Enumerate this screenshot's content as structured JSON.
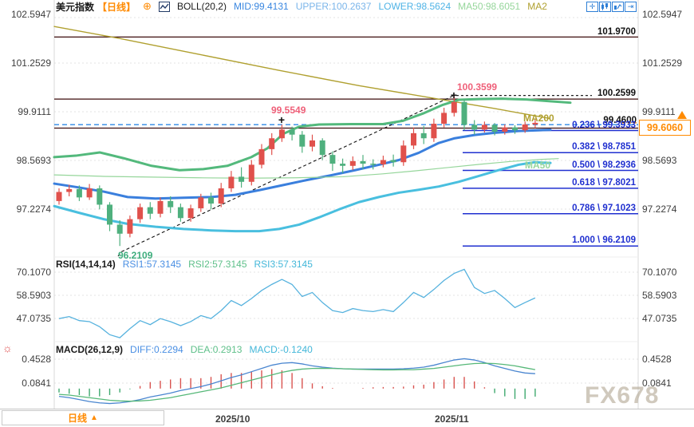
{
  "header": {
    "symbol": "美元指数",
    "period": "【日线】",
    "add_icon": "⊕",
    "boll": "BOLL(20,2)",
    "mid": "MID:99.4131",
    "upper": "UPPER:100.2637",
    "lower": "LOWER:98.5624",
    "ma50": "MA50:98.6051",
    "ma2": "MA2"
  },
  "toolbar": {
    "icons": [
      "crosshair",
      "candle-chart",
      "line-chart",
      "export"
    ]
  },
  "levels": {
    "resistance_top": "101.9700",
    "resistance_mid": "100.2599",
    "swing_high": "100.3599",
    "swing_mid": "99.5549",
    "swing_low": "96.2109",
    "black_level": "99.4600"
  },
  "ma_labels": {
    "ma200": "MA200",
    "ma50": "MA50"
  },
  "price_tag": "99.6060",
  "rsi_header": {
    "title": "RSI(14,14,14)",
    "r1": "RSI1:57.3145",
    "r2": "RSI2:57.3145",
    "r3": "RSI3:57.3145"
  },
  "macd_header": {
    "title": "MACD(26,12,9)",
    "diff": "DIFF:0.2294",
    "dea": "DEA:0.2913",
    "macd": "MACD:-0.1240"
  },
  "footer": {
    "period_box": "日线",
    "period_arrow": "▲",
    "dates": [
      "2025/10",
      "2025/11"
    ]
  },
  "watermark": "FX678",
  "colors": {
    "up": "#e0514c",
    "down": "#4fb07e",
    "bb_upper": "#53b97c",
    "bb_mid": "#3a7fdd",
    "bb_lower": "#49bfdf",
    "ma50": "#96d69b",
    "ma200": "#b0a030",
    "fib": "#2030d0",
    "accent_orange": "#ff8a00",
    "rsi_line": "#56b2de",
    "diff_line": "#4a86d0",
    "dea_line": "#56b878"
  },
  "chart_data": {
    "type": "candlestick+indicators",
    "title": "美元指数 日线 (US Dollar Index, daily)",
    "price_axis_ticks": [
      "102.5947",
      "101.2529",
      "99.9111",
      "98.5693",
      "97.2274"
    ],
    "rsi_axis_ticks": [
      "70.1070",
      "58.5903",
      "47.0735"
    ],
    "macd_axis_ticks": [
      "0.4528",
      "0.0841"
    ],
    "x_dates": [
      "2025/10",
      "2025/11"
    ],
    "last_close": 99.606,
    "fib_levels": [
      {
        "label": "0.236 \\ 99.3933",
        "value": 99.3933
      },
      {
        "label": "0.382 \\ 98.7851",
        "value": 98.7851
      },
      {
        "label": "0.500 \\ 98.2936",
        "value": 98.2936
      },
      {
        "label": "0.618 \\ 97.8021",
        "value": 97.8021
      },
      {
        "label": "0.786 \\ 97.1023",
        "value": 97.1023
      },
      {
        "label": "1.000 \\ 96.2109",
        "value": 96.2109
      }
    ],
    "hlines": {
      "solid": [
        101.97,
        100.2599,
        99.46
      ],
      "dashed_blue": 99.5549,
      "dotted_black": 100.3599
    },
    "trendline": [
      [
        148,
        95.93
      ],
      [
        152,
        96.05
      ],
      [
        569,
        100.3599
      ]
    ],
    "candles_ohlc_as_oclh": [
      [
        97.45,
        97.7,
        97.35,
        97.8
      ],
      [
        97.7,
        97.78,
        97.58,
        97.9
      ],
      [
        97.78,
        97.55,
        97.45,
        97.88
      ],
      [
        97.55,
        97.8,
        97.48,
        97.92
      ],
      [
        97.8,
        97.35,
        97.22,
        97.88
      ],
      [
        97.35,
        96.8,
        96.62,
        97.42
      ],
      [
        96.8,
        96.55,
        96.2109,
        96.92
      ],
      [
        96.55,
        96.95,
        96.45,
        97.05
      ],
      [
        96.95,
        97.28,
        96.85,
        97.38
      ],
      [
        97.28,
        97.1,
        96.95,
        97.42
      ],
      [
        97.1,
        97.45,
        97.0,
        97.55
      ],
      [
        97.45,
        97.28,
        97.12,
        97.58
      ],
      [
        97.28,
        96.98,
        96.88,
        97.38
      ],
      [
        96.98,
        97.25,
        96.88,
        97.35
      ],
      [
        97.25,
        97.55,
        97.15,
        97.65
      ],
      [
        97.55,
        97.38,
        97.22,
        97.68
      ],
      [
        97.38,
        97.8,
        97.28,
        97.95
      ],
      [
        97.8,
        98.12,
        97.7,
        98.28
      ],
      [
        98.12,
        97.98,
        97.82,
        98.38
      ],
      [
        97.98,
        98.45,
        97.88,
        98.58
      ],
      [
        98.45,
        98.88,
        98.35,
        99.02
      ],
      [
        98.88,
        99.18,
        98.72,
        99.32
      ],
      [
        99.18,
        99.42,
        99.08,
        99.5549
      ],
      [
        99.42,
        99.28,
        99.12,
        99.5
      ],
      [
        99.28,
        98.95,
        98.78,
        99.38
      ],
      [
        98.95,
        99.12,
        98.82,
        99.28
      ],
      [
        99.12,
        98.72,
        98.58,
        99.18
      ],
      [
        98.72,
        98.48,
        98.28,
        98.82
      ],
      [
        98.48,
        98.42,
        98.22,
        98.62
      ],
      [
        98.42,
        98.55,
        98.3,
        98.68
      ],
      [
        98.55,
        98.48,
        98.33,
        98.72
      ],
      [
        98.48,
        98.46,
        98.32,
        98.6
      ],
      [
        98.46,
        98.58,
        98.38,
        98.7
      ],
      [
        98.58,
        98.52,
        98.4,
        98.73
      ],
      [
        98.52,
        98.98,
        98.42,
        99.12
      ],
      [
        98.98,
        99.32,
        98.88,
        99.48
      ],
      [
        99.32,
        99.18,
        99.02,
        99.52
      ],
      [
        99.18,
        99.58,
        99.08,
        99.72
      ],
      [
        99.58,
        99.88,
        99.48,
        100.02
      ],
      [
        99.88,
        100.18,
        99.78,
        100.3599
      ],
      [
        100.18,
        99.55,
        99.4,
        100.24
      ],
      [
        99.55,
        99.42,
        99.28,
        99.68
      ],
      [
        99.42,
        99.55,
        99.34,
        99.64
      ],
      [
        99.55,
        99.36,
        99.26,
        99.6
      ],
      [
        99.36,
        99.48,
        99.28,
        99.56
      ],
      [
        99.48,
        99.4,
        99.3,
        99.54
      ],
      [
        99.4,
        99.56,
        99.33,
        99.64
      ],
      [
        99.56,
        99.606,
        99.46,
        99.7
      ]
    ],
    "rsi_values": [
      47,
      48,
      46,
      45.5,
      43,
      39,
      37.5,
      42,
      46,
      44,
      47,
      45.5,
      43.5,
      45.5,
      48.5,
      47,
      51,
      56,
      53.5,
      57,
      61,
      64,
      66.5,
      64,
      58,
      60,
      55,
      51,
      50,
      52,
      51,
      50.5,
      51.5,
      50.5,
      55,
      60,
      57.5,
      61.5,
      66,
      69.5,
      71.5,
      62.5,
      59.5,
      61,
      57,
      52.5,
      55,
      57.31
    ],
    "macd_diff": [
      -0.12,
      -0.14,
      -0.17,
      -0.2,
      -0.22,
      -0.23,
      -0.22,
      -0.2,
      -0.17,
      -0.13,
      -0.1,
      -0.07,
      -0.03,
      0.0,
      0.03,
      0.07,
      0.12,
      0.17,
      0.21,
      0.26,
      0.31,
      0.36,
      0.39,
      0.4,
      0.38,
      0.35,
      0.33,
      0.315,
      0.305,
      0.3,
      0.3,
      0.3,
      0.3,
      0.3,
      0.305,
      0.315,
      0.33,
      0.36,
      0.4,
      0.44,
      0.46,
      0.44,
      0.4,
      0.35,
      0.31,
      0.27,
      0.24,
      0.2294
    ],
    "macd_dea": [
      -0.09,
      -0.1,
      -0.12,
      -0.14,
      -0.16,
      -0.18,
      -0.19,
      -0.195,
      -0.19,
      -0.18,
      -0.16,
      -0.14,
      -0.11,
      -0.08,
      -0.05,
      -0.02,
      0.01,
      0.05,
      0.09,
      0.13,
      0.17,
      0.21,
      0.25,
      0.28,
      0.3,
      0.31,
      0.312,
      0.31,
      0.305,
      0.3,
      0.295,
      0.29,
      0.288,
      0.288,
      0.29,
      0.29,
      0.3,
      0.31,
      0.33,
      0.35,
      0.37,
      0.385,
      0.39,
      0.385,
      0.37,
      0.35,
      0.32,
      0.2913
    ],
    "overlays": [
      {
        "name": "ma200",
        "color": "#b0a030",
        "width": 1.4,
        "points": [
          [
            68,
            102.26
          ],
          [
            150,
            101.93
          ],
          [
            250,
            101.49
          ],
          [
            350,
            101.05
          ],
          [
            450,
            100.63
          ],
          [
            550,
            100.26
          ],
          [
            620,
            100.0
          ],
          [
            688,
            99.73
          ]
        ]
      },
      {
        "name": "boll-upper",
        "color": "#53b97c",
        "width": 3,
        "points": [
          [
            68,
            98.66
          ],
          [
            95,
            98.7
          ],
          [
            125,
            98.79
          ],
          [
            155,
            98.63
          ],
          [
            190,
            98.42
          ],
          [
            225,
            98.3
          ],
          [
            255,
            98.33
          ],
          [
            285,
            98.42
          ],
          [
            315,
            98.66
          ],
          [
            335,
            98.9
          ],
          [
            355,
            99.3
          ],
          [
            375,
            99.5
          ],
          [
            400,
            99.56
          ],
          [
            440,
            99.57
          ],
          [
            480,
            99.57
          ],
          [
            505,
            99.66
          ],
          [
            530,
            99.86
          ],
          [
            555,
            100.1
          ],
          [
            575,
            100.24
          ],
          [
            600,
            100.26
          ],
          [
            630,
            100.27
          ],
          [
            660,
            100.25
          ],
          [
            690,
            100.2
          ],
          [
            715,
            100.16
          ]
        ]
      },
      {
        "name": "boll-mid",
        "color": "#3a7fdd",
        "width": 3,
        "points": [
          [
            68,
            97.93
          ],
          [
            100,
            97.82
          ],
          [
            130,
            97.71
          ],
          [
            160,
            97.56
          ],
          [
            195,
            97.52
          ],
          [
            230,
            97.54
          ],
          [
            265,
            97.56
          ],
          [
            295,
            97.62
          ],
          [
            325,
            97.75
          ],
          [
            355,
            97.89
          ],
          [
            385,
            98.03
          ],
          [
            415,
            98.16
          ],
          [
            445,
            98.3
          ],
          [
            475,
            98.45
          ],
          [
            500,
            98.58
          ],
          [
            525,
            98.78
          ],
          [
            550,
            99.05
          ],
          [
            570,
            99.18
          ],
          [
            595,
            99.27
          ],
          [
            620,
            99.33
          ],
          [
            650,
            99.38
          ],
          [
            675,
            99.4
          ],
          [
            690,
            99.4131
          ]
        ]
      },
      {
        "name": "boll-lower",
        "color": "#49bfdf",
        "width": 3,
        "points": [
          [
            68,
            97.31
          ],
          [
            100,
            97.12
          ],
          [
            130,
            96.95
          ],
          [
            160,
            96.82
          ],
          [
            195,
            96.74
          ],
          [
            230,
            96.68
          ],
          [
            265,
            96.64
          ],
          [
            295,
            96.62
          ],
          [
            325,
            96.62
          ],
          [
            350,
            96.68
          ],
          [
            375,
            96.8
          ],
          [
            400,
            97.0
          ],
          [
            425,
            97.22
          ],
          [
            450,
            97.42
          ],
          [
            475,
            97.56
          ],
          [
            500,
            97.68
          ],
          [
            525,
            97.76
          ],
          [
            550,
            97.85
          ],
          [
            575,
            97.98
          ],
          [
            600,
            98.14
          ],
          [
            625,
            98.3
          ],
          [
            650,
            98.45
          ],
          [
            670,
            98.52
          ],
          [
            690,
            98.5
          ]
        ]
      },
      {
        "name": "ma50",
        "color": "#96d69b",
        "width": 1.2,
        "points": [
          [
            68,
            98.17
          ],
          [
            130,
            98.13
          ],
          [
            190,
            98.11
          ],
          [
            250,
            98.09
          ],
          [
            310,
            98.08
          ],
          [
            370,
            98.09
          ],
          [
            430,
            98.12
          ],
          [
            480,
            98.2
          ],
          [
            520,
            98.28
          ],
          [
            560,
            98.37
          ],
          [
            600,
            98.46
          ],
          [
            640,
            98.54
          ],
          [
            680,
            98.6
          ],
          [
            700,
            98.62
          ]
        ]
      }
    ]
  }
}
